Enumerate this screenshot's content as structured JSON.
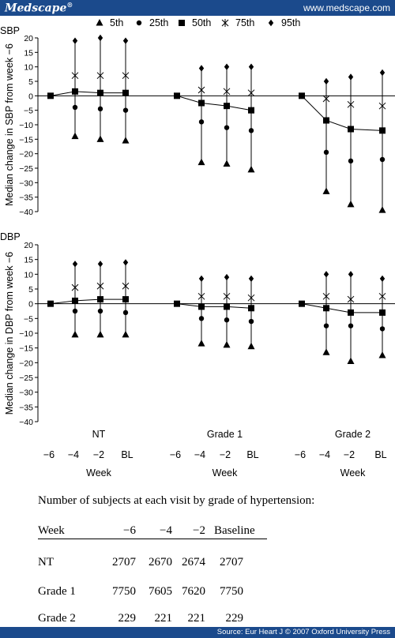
{
  "header": {
    "logo": "Medscape",
    "logo_mark": "®",
    "url": "www.medscape.com"
  },
  "footer": {
    "source": "Source: Eur Heart J © 2007 Oxford University Press"
  },
  "legend": [
    {
      "name": "5th",
      "marker": "triangle"
    },
    {
      "name": "25th",
      "marker": "circle"
    },
    {
      "name": "50th",
      "marker": "square"
    },
    {
      "name": "75th",
      "marker": "star"
    },
    {
      "name": "95th",
      "marker": "diamond"
    }
  ],
  "chart_data": [
    {
      "type": "scatter",
      "panel_label": "SBP",
      "ylabel": "Median change in SBP from week −6",
      "ylim": [
        -40,
        20
      ],
      "yticks": [
        20,
        15,
        10,
        5,
        0,
        -5,
        -10,
        -15,
        -20,
        -25,
        -30,
        -35,
        -40
      ],
      "groups": [
        {
          "name": "NT",
          "weeks": [
            "−6",
            "−4",
            "−2",
            "BL"
          ],
          "p5": [
            0,
            -14,
            -15,
            -15.5
          ],
          "p25": [
            0,
            -4,
            -4.5,
            -5
          ],
          "p50": [
            0,
            1.5,
            1,
            1
          ],
          "p75": [
            0,
            7,
            7,
            7
          ],
          "p95": [
            0,
            19,
            20,
            19
          ]
        },
        {
          "name": "Grade 1",
          "weeks": [
            "−6",
            "−4",
            "−2",
            "BL"
          ],
          "p5": [
            0,
            -23,
            -23.5,
            -25.5
          ],
          "p25": [
            0,
            -9,
            -11,
            -12
          ],
          "p50": [
            0,
            -2.5,
            -3.5,
            -5
          ],
          "p75": [
            0,
            2,
            1.5,
            1
          ],
          "p95": [
            0,
            9.5,
            10,
            10
          ]
        },
        {
          "name": "Grade 2",
          "weeks": [
            "−6",
            "−4",
            "−2",
            "BL"
          ],
          "p5": [
            0,
            -33,
            -37.5,
            -39.5
          ],
          "p25": [
            0,
            -19.5,
            -22.5,
            -22
          ],
          "p50": [
            0,
            -8.5,
            -11.5,
            -12
          ],
          "p75": [
            0,
            -1,
            -3,
            -3.5
          ],
          "p95": [
            0,
            5,
            6.5,
            8
          ]
        }
      ]
    },
    {
      "type": "scatter",
      "panel_label": "DBP",
      "ylabel": "Median change in DBP from week −6",
      "ylim": [
        -40,
        20
      ],
      "yticks": [
        20,
        15,
        10,
        5,
        0,
        -5,
        -10,
        -15,
        -20,
        -25,
        -30,
        -35,
        -40
      ],
      "groups": [
        {
          "name": "NT",
          "weeks": [
            "−6",
            "−4",
            "−2",
            "BL"
          ],
          "p5": [
            0,
            -10.5,
            -10.5,
            -10.5
          ],
          "p25": [
            0,
            -2.5,
            -2.5,
            -3
          ],
          "p50": [
            0,
            1,
            1.5,
            1.5
          ],
          "p75": [
            0,
            5.5,
            6,
            6
          ],
          "p95": [
            0,
            13.5,
            13.5,
            14
          ]
        },
        {
          "name": "Grade 1",
          "weeks": [
            "−6",
            "−4",
            "−2",
            "BL"
          ],
          "p5": [
            0,
            -13.5,
            -14,
            -14.5
          ],
          "p25": [
            0,
            -5,
            -5.5,
            -6
          ],
          "p50": [
            0,
            -1,
            -1,
            -1.5
          ],
          "p75": [
            0,
            2.5,
            2.5,
            2
          ],
          "p95": [
            0,
            8.5,
            9,
            8.5
          ]
        },
        {
          "name": "Grade 2",
          "weeks": [
            "−6",
            "−4",
            "−2",
            "BL"
          ],
          "p5": [
            0,
            -16.5,
            -19.5,
            -17.5
          ],
          "p25": [
            0,
            -7.5,
            -7.5,
            -8.5
          ],
          "p50": [
            0,
            -1.5,
            -3,
            -3
          ],
          "p75": [
            0,
            2.5,
            1.5,
            2.5
          ],
          "p95": [
            0,
            10,
            10,
            8.5
          ]
        }
      ]
    }
  ],
  "xaxis": {
    "label": "Week"
  },
  "subjects_table": {
    "title": "Number of subjects at each visit by grade of hypertension:",
    "columns": [
      "Week",
      "−6",
      "−4",
      "−2",
      "Baseline"
    ],
    "rows": [
      [
        "NT",
        "2707",
        "2670",
        "2674",
        "2707"
      ],
      [
        "Grade 1",
        "7750",
        "7605",
        "7620",
        "7750"
      ],
      [
        "Grade 2",
        "229",
        "221",
        "221",
        "229"
      ]
    ]
  }
}
